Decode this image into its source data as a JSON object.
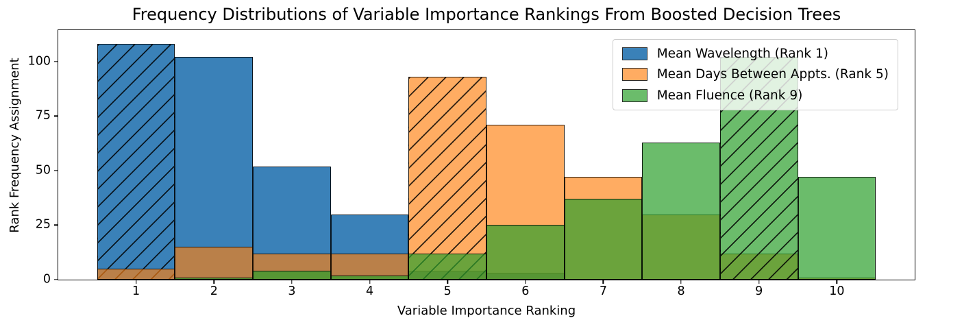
{
  "chart_data": {
    "type": "bar",
    "title": "Frequency Distributions of Variable Importance Rankings From Boosted Decision Trees",
    "xlabel": "Variable Importance Ranking",
    "ylabel": "Rank Frequency Assignment",
    "categories": [
      1,
      2,
      3,
      4,
      5,
      6,
      7,
      8,
      9,
      10
    ],
    "xticks": [
      "1",
      "2",
      "3",
      "4",
      "5",
      "6",
      "7",
      "8",
      "9",
      "10"
    ],
    "ytick_values": [
      0,
      25,
      50,
      75,
      100
    ],
    "yticks": [
      "0",
      "25",
      "50",
      "75",
      "100"
    ],
    "xlim": [
      0,
      11
    ],
    "ylim": [
      0,
      114.4
    ],
    "grid": false,
    "legend_position": "upper right",
    "bar_width": 1,
    "edge_color": "rgba(0,0,0,0.85)",
    "series": [
      {
        "name": "Mean Wavelength (Rank 1)",
        "rank": 1,
        "hatched_bin": 1,
        "hatch_pattern": "/",
        "base_color": "#1f77b4",
        "fill": "rgba(26,108,172,0.86)",
        "values": [
          108,
          102,
          52,
          30,
          4,
          3,
          0,
          0,
          0,
          0
        ]
      },
      {
        "name": "Mean Days Between Appts. (Rank 5)",
        "rank": 5,
        "hatched_bin": 5,
        "hatch_pattern": "/",
        "base_color": "#ff7f0e",
        "fill": "rgba(255,127,14,0.65)",
        "values": [
          5,
          15,
          12,
          12,
          93,
          71,
          47,
          30,
          12,
          1
        ]
      },
      {
        "name": "Mean Fluence (Rank 9)",
        "rank": 9,
        "hatched_bin": 9,
        "hatch_pattern": "/",
        "base_color": "#2ca02c",
        "fill": "rgba(44,160,44,0.70)",
        "values": [
          0,
          1,
          4,
          2,
          12,
          25,
          37,
          63,
          102,
          47
        ]
      }
    ]
  }
}
